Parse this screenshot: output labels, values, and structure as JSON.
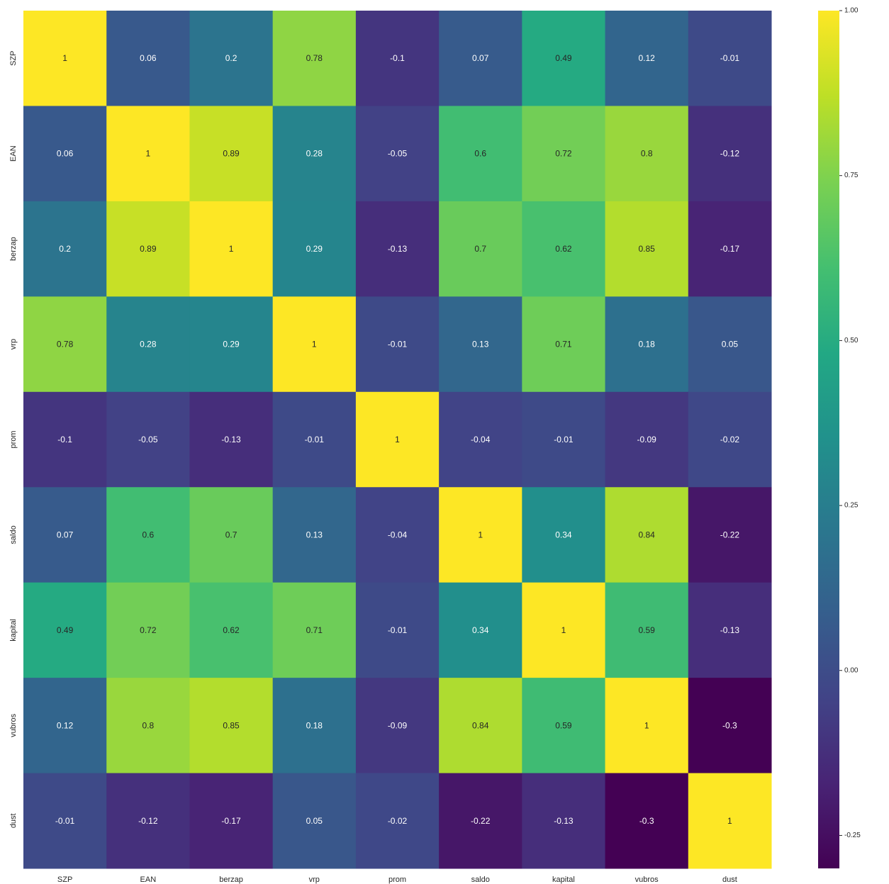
{
  "chart_data": {
    "type": "heatmap",
    "title": "",
    "xlabel": "",
    "ylabel": "",
    "colormap": "viridis",
    "vmin": -0.3,
    "vmax": 1.0,
    "x": [
      "SZP",
      "EAN",
      "berzap",
      "vrp",
      "prom",
      "saldo",
      "kapital",
      "vubros",
      "dust"
    ],
    "y": [
      "SZP",
      "EAN",
      "berzap",
      "vrp",
      "prom",
      "saldo",
      "kapital",
      "vubros",
      "dust"
    ],
    "values": [
      [
        1,
        0.06,
        0.2,
        0.78,
        -0.1,
        0.07,
        0.49,
        0.12,
        -0.01
      ],
      [
        0.06,
        1,
        0.89,
        0.28,
        -0.05,
        0.6,
        0.72,
        0.8,
        -0.12
      ],
      [
        0.2,
        0.89,
        1,
        0.29,
        -0.13,
        0.7,
        0.62,
        0.85,
        -0.17
      ],
      [
        0.78,
        0.28,
        0.29,
        1,
        -0.01,
        0.13,
        0.71,
        0.18,
        0.05
      ],
      [
        -0.1,
        -0.05,
        -0.13,
        -0.01,
        1,
        -0.04,
        -0.01,
        -0.09,
        -0.02
      ],
      [
        0.07,
        0.6,
        0.7,
        0.13,
        -0.04,
        1,
        0.34,
        0.84,
        -0.22
      ],
      [
        0.49,
        0.72,
        0.62,
        0.71,
        -0.01,
        0.34,
        1,
        0.59,
        -0.13
      ],
      [
        0.12,
        0.8,
        0.85,
        0.18,
        -0.09,
        0.84,
        0.59,
        1,
        -0.3
      ],
      [
        -0.01,
        -0.12,
        -0.17,
        0.05,
        -0.02,
        -0.22,
        -0.13,
        -0.3,
        1
      ]
    ],
    "colorbar": {
      "ticks": [
        1.0,
        0.75,
        0.5,
        0.25,
        0.0,
        -0.25
      ],
      "tick_labels": [
        "1.00",
        "0.75",
        "0.50",
        "0.25",
        "0.00",
        "-0.25"
      ]
    },
    "annotation_colors": {
      "on_dark": "#ffffff",
      "on_light": "#262626"
    }
  }
}
